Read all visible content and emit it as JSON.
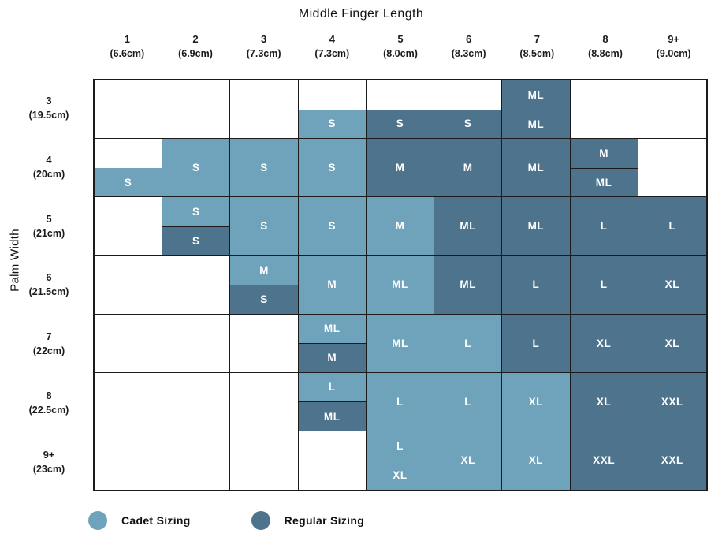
{
  "title": "Middle Finger Length",
  "y_axis_label": "Palm Width",
  "colors": {
    "cadet": "#6FA3BB",
    "regular": "#4D748C",
    "border": "#1b1b1b",
    "cell_text": "#ffffff"
  },
  "legend": [
    {
      "label": "Cadet Sizing",
      "sizing": "cadet"
    },
    {
      "label": "Regular Sizing",
      "sizing": "regular"
    }
  ],
  "chart_data": {
    "type": "table",
    "x_axis": {
      "title": "Middle Finger Length",
      "categories": [
        {
          "label": "1",
          "sub": "(6.6cm)"
        },
        {
          "label": "2",
          "sub": "(6.9cm)"
        },
        {
          "label": "3",
          "sub": "(7.3cm)"
        },
        {
          "label": "4",
          "sub": "(7.3cm)"
        },
        {
          "label": "5",
          "sub": "(8.0cm)"
        },
        {
          "label": "6",
          "sub": "(8.3cm)"
        },
        {
          "label": "7",
          "sub": "(8.5cm)"
        },
        {
          "label": "8",
          "sub": "(8.8cm)"
        },
        {
          "label": "9+",
          "sub": "(9.0cm)"
        }
      ]
    },
    "y_axis": {
      "title": "Palm Width",
      "categories": [
        {
          "label": "3",
          "sub": "(19.5cm)"
        },
        {
          "label": "4",
          "sub": "(20cm)"
        },
        {
          "label": "5",
          "sub": "(21cm)"
        },
        {
          "label": "6",
          "sub": "(21.5cm)"
        },
        {
          "label": "7",
          "sub": "(22cm)"
        },
        {
          "label": "8",
          "sub": "(22.5cm)"
        },
        {
          "label": "9+",
          "sub": "(23cm)"
        }
      ]
    },
    "cells": [
      [
        null,
        null,
        null,
        {
          "mode": "half",
          "bottom": {
            "size": "S",
            "sizing": "cadet"
          }
        },
        {
          "mode": "half",
          "bottom": {
            "size": "S",
            "sizing": "regular"
          }
        },
        {
          "mode": "half",
          "bottom": {
            "size": "S",
            "sizing": "regular"
          }
        },
        {
          "mode": "split",
          "top": {
            "size": "ML",
            "sizing": "regular"
          },
          "bottom": {
            "size": "ML",
            "sizing": "regular"
          }
        },
        null,
        null
      ],
      [
        {
          "mode": "half",
          "bottom": {
            "size": "S",
            "sizing": "cadet"
          }
        },
        {
          "mode": "full",
          "size": "S",
          "sizing": "cadet"
        },
        {
          "mode": "full",
          "size": "S",
          "sizing": "cadet"
        },
        {
          "mode": "full",
          "size": "S",
          "sizing": "cadet"
        },
        {
          "mode": "full",
          "size": "M",
          "sizing": "regular"
        },
        {
          "mode": "full",
          "size": "M",
          "sizing": "regular"
        },
        {
          "mode": "full",
          "size": "ML",
          "sizing": "regular"
        },
        {
          "mode": "split",
          "top": {
            "size": "M",
            "sizing": "regular"
          },
          "bottom": {
            "size": "ML",
            "sizing": "regular"
          }
        },
        null
      ],
      [
        null,
        {
          "mode": "split",
          "top": {
            "size": "S",
            "sizing": "cadet"
          },
          "bottom": {
            "size": "S",
            "sizing": "regular"
          }
        },
        {
          "mode": "full",
          "size": "S",
          "sizing": "cadet"
        },
        {
          "mode": "full",
          "size": "S",
          "sizing": "cadet"
        },
        {
          "mode": "full",
          "size": "M",
          "sizing": "cadet"
        },
        {
          "mode": "full",
          "size": "ML",
          "sizing": "regular"
        },
        {
          "mode": "full",
          "size": "ML",
          "sizing": "regular"
        },
        {
          "mode": "full",
          "size": "L",
          "sizing": "regular"
        },
        {
          "mode": "full",
          "size": "L",
          "sizing": "regular"
        }
      ],
      [
        null,
        null,
        {
          "mode": "split",
          "top": {
            "size": "M",
            "sizing": "cadet"
          },
          "bottom": {
            "size": "S",
            "sizing": "regular"
          }
        },
        {
          "mode": "full",
          "size": "M",
          "sizing": "cadet"
        },
        {
          "mode": "full",
          "size": "ML",
          "sizing": "cadet"
        },
        {
          "mode": "full",
          "size": "ML",
          "sizing": "regular"
        },
        {
          "mode": "full",
          "size": "L",
          "sizing": "regular"
        },
        {
          "mode": "full",
          "size": "L",
          "sizing": "regular"
        },
        {
          "mode": "full",
          "size": "XL",
          "sizing": "regular"
        }
      ],
      [
        null,
        null,
        null,
        {
          "mode": "split",
          "top": {
            "size": "ML",
            "sizing": "cadet"
          },
          "bottom": {
            "size": "M",
            "sizing": "regular"
          }
        },
        {
          "mode": "full",
          "size": "ML",
          "sizing": "cadet"
        },
        {
          "mode": "full",
          "size": "L",
          "sizing": "cadet"
        },
        {
          "mode": "full",
          "size": "L",
          "sizing": "regular"
        },
        {
          "mode": "full",
          "size": "XL",
          "sizing": "regular"
        },
        {
          "mode": "full",
          "size": "XL",
          "sizing": "regular"
        }
      ],
      [
        null,
        null,
        null,
        {
          "mode": "split",
          "top": {
            "size": "L",
            "sizing": "cadet"
          },
          "bottom": {
            "size": "ML",
            "sizing": "regular"
          }
        },
        {
          "mode": "full",
          "size": "L",
          "sizing": "cadet"
        },
        {
          "mode": "full",
          "size": "L",
          "sizing": "cadet"
        },
        {
          "mode": "full",
          "size": "XL",
          "sizing": "cadet"
        },
        {
          "mode": "full",
          "size": "XL",
          "sizing": "regular"
        },
        {
          "mode": "full",
          "size": "XXL",
          "sizing": "regular"
        }
      ],
      [
        null,
        null,
        null,
        null,
        {
          "mode": "split",
          "top": {
            "size": "L",
            "sizing": "cadet"
          },
          "bottom": {
            "size": "XL",
            "sizing": "cadet"
          }
        },
        {
          "mode": "full",
          "size": "XL",
          "sizing": "cadet"
        },
        {
          "mode": "full",
          "size": "XL",
          "sizing": "cadet"
        },
        {
          "mode": "full",
          "size": "XXL",
          "sizing": "regular"
        },
        {
          "mode": "full",
          "size": "XXL",
          "sizing": "regular"
        }
      ]
    ]
  }
}
